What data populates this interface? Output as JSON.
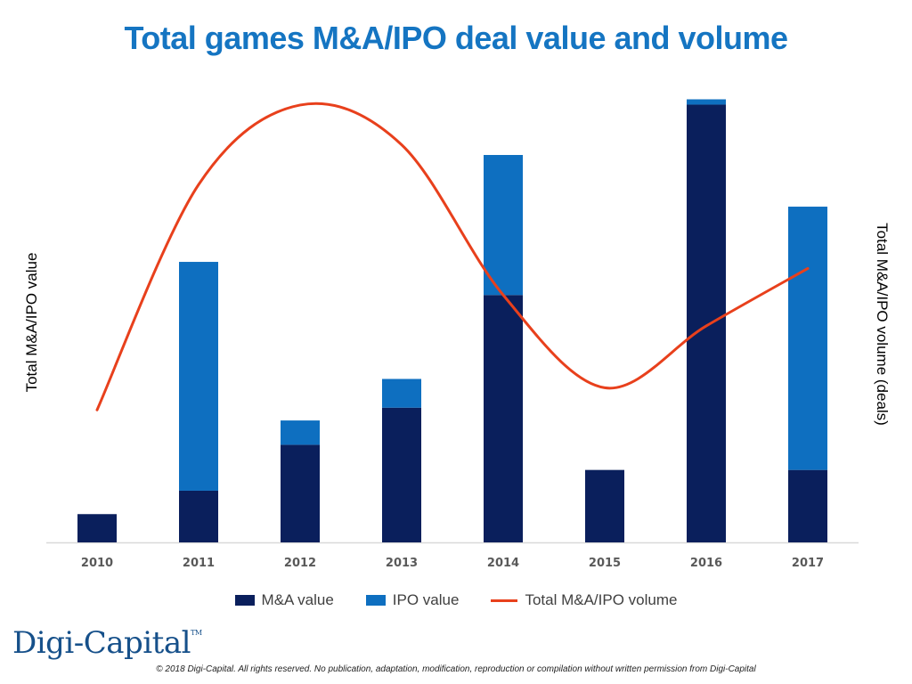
{
  "chart_data": {
    "type": "bar",
    "stacked": true,
    "title": "Total games M&A/IPO deal value and volume",
    "ylabel_left": "Total M&A/IPO value",
    "ylabel_right": "Total M&A/IPO volume (deals)",
    "categories": [
      "2010",
      "2011",
      "2012",
      "2013",
      "2014",
      "2015",
      "2016",
      "2017"
    ],
    "ylim": [
      0,
      100
    ],
    "series": [
      {
        "name": "M&A value",
        "kind": "bar",
        "color": "#0a1f5c",
        "values": [
          6.4,
          11.7,
          22.1,
          30.5,
          56.0,
          16.4,
          99.1,
          16.4
        ]
      },
      {
        "name": "IPO value",
        "kind": "bar",
        "color": "#0e6fc0",
        "values": [
          0,
          51.8,
          5.5,
          6.5,
          31.7,
          0,
          1.2,
          59.6
        ]
      },
      {
        "name": "Total M&A/IPO volume",
        "kind": "line",
        "axis": "secondary",
        "color": "#e8401c",
        "values": [
          30,
          81,
          99,
          90,
          56,
          35,
          49,
          62
        ]
      }
    ],
    "ylim_secondary": [
      0,
      100
    ],
    "legend_position": "bottom"
  },
  "footer": {
    "logo_text": "Digi-Capital",
    "logo_tm": "TM",
    "copyright": "© 2018 Digi-Capital. All rights reserved. No publication, adaptation, modification, reproduction or compilation without written permission from Digi-Capital"
  }
}
